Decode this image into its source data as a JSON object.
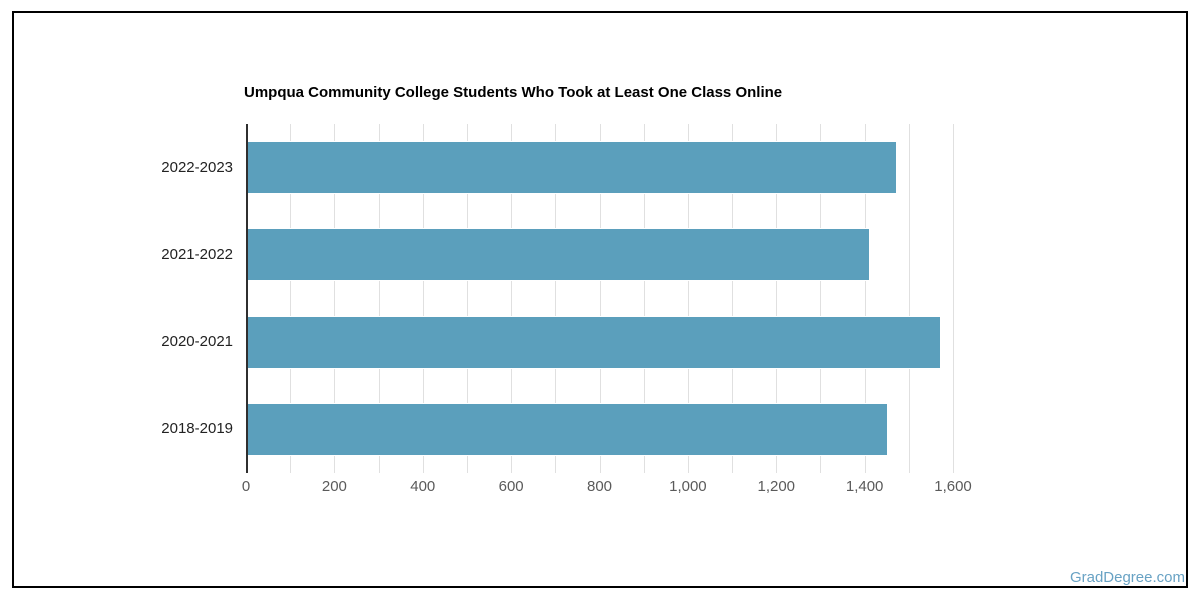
{
  "chart_data": {
    "type": "bar",
    "orientation": "horizontal",
    "title": "Umpqua Community College Students Who Took at Least One Class Online",
    "categories": [
      "2022-2023",
      "2021-2022",
      "2020-2021",
      "2018-2019"
    ],
    "values": [
      1470,
      1410,
      1570,
      1450
    ],
    "xlabel": "",
    "ylabel": "",
    "xlim": [
      0,
      1600
    ],
    "x_tick_values": [
      0,
      200,
      400,
      600,
      800,
      1000,
      1200,
      1400,
      1600
    ],
    "x_tick_labels": [
      "0",
      "200",
      "400",
      "600",
      "800",
      "1,000",
      "1,200",
      "1,400",
      "1,600"
    ],
    "gridline_interval": 100,
    "grid": true,
    "legend": false,
    "colors": {
      "bar": "#5B9FBC",
      "bar_border": "#FFFFFF",
      "grid": "#E0E0E0",
      "axis": "#2F2F2F",
      "title": "#000000",
      "x_tick_label": "#5A5A5A",
      "y_tick_label": "#222222",
      "frame_border": "#000000"
    }
  },
  "watermark": {
    "label": "GradDegree.com",
    "color": "#68A2C4"
  }
}
